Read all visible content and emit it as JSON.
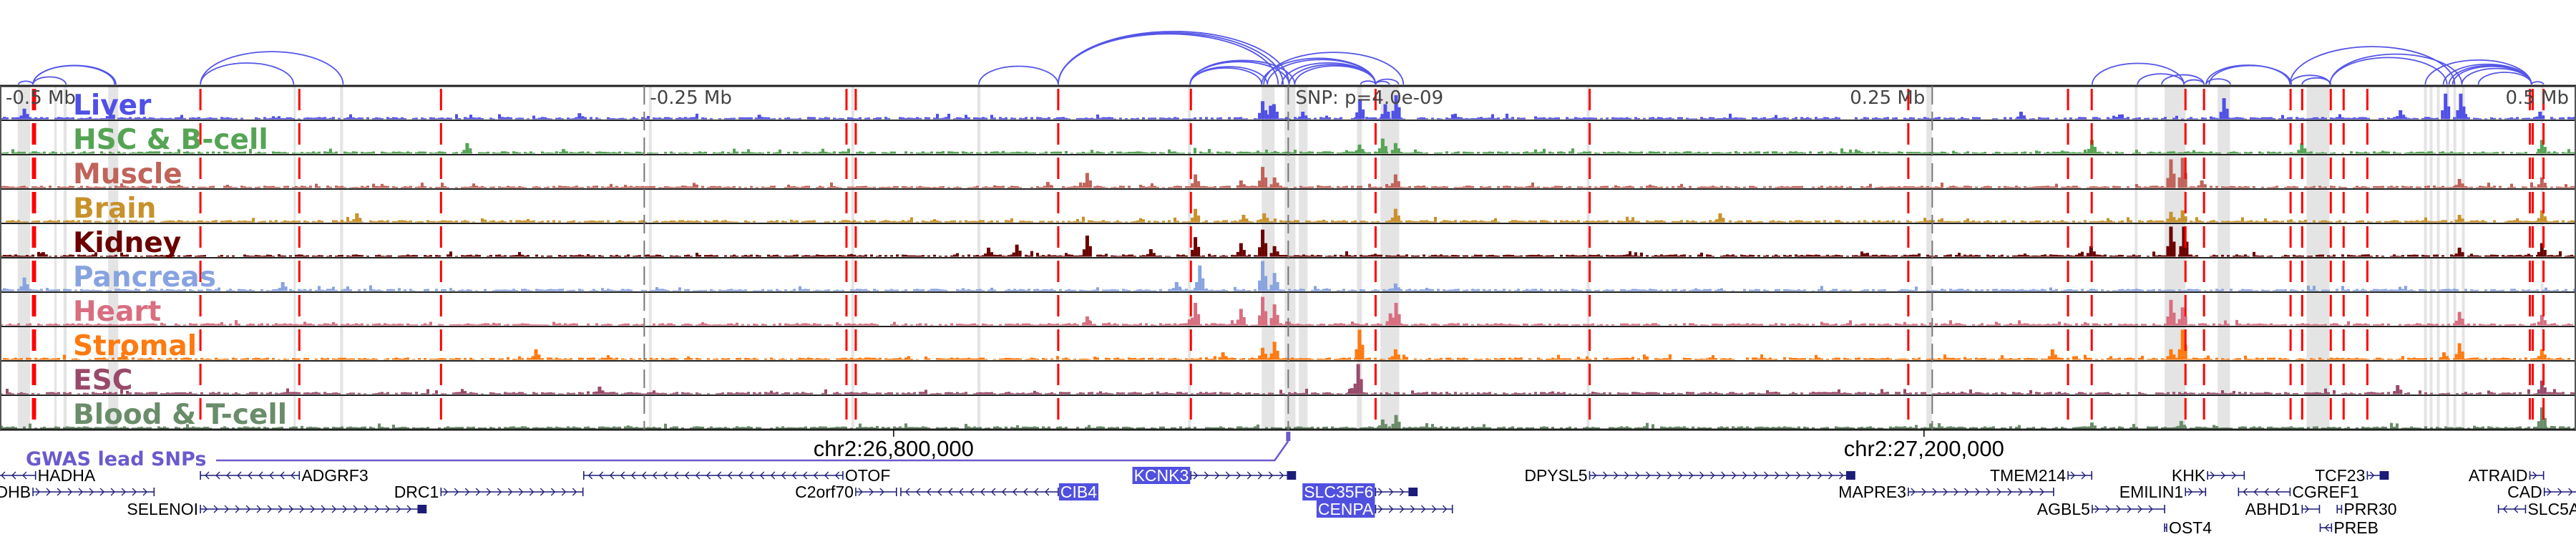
{
  "chart_data": {
    "type": "bar",
    "chromosome": "chr2",
    "x_range_kb": [
      26453.1,
      27453.1
    ],
    "snp": {
      "position_kb": 26953.2,
      "label": "SNP: p=4.0e-09"
    },
    "relative_ticks": [
      {
        "label": "-0.5 Mb",
        "position_kb": 26453.1
      },
      {
        "label": "-0.25 Mb",
        "position_kb": 26703.2
      },
      {
        "label": "0.25 Mb",
        "position_kb": 27203.2
      },
      {
        "label": "0.5 Mb",
        "position_kb": 27453.1
      }
    ],
    "coordinate_ticks": [
      {
        "label": "chr2:26,800,000",
        "position_kb": 26800
      },
      {
        "label": "chr2:27,200,000",
        "position_kb": 27200
      }
    ],
    "tracks": [
      {
        "name": "Liver",
        "color": "#5050e6",
        "peaks": [
          [
            26462.7,
            0.35
          ],
          [
            26496.1,
            0.3
          ],
          [
            26678.2,
            0.2
          ],
          [
            26748,
            0.15
          ],
          [
            26943.4,
            0.6
          ],
          [
            26946.5,
            0.45
          ],
          [
            26947.8,
            0.5
          ],
          [
            26959,
            0.25
          ],
          [
            26981.2,
            0.65
          ],
          [
            26991,
            0.5
          ],
          [
            26995.2,
            0.8
          ],
          [
            27237.8,
            0.25
          ],
          [
            27316.6,
            0.7
          ],
          [
            27385.1,
            0.3
          ],
          [
            27402.6,
            0.85
          ],
          [
            27408.5,
            0.85
          ],
          [
            27439.3,
            0.25
          ]
        ]
      },
      {
        "name": "HSC & B-cell",
        "color": "#55a455",
        "peaks": [
          [
            26634.6,
            0.35
          ],
          [
            26672,
            0.15
          ],
          [
            26981,
            0.3
          ],
          [
            26990,
            0.5
          ],
          [
            26995,
            0.35
          ],
          [
            27265.3,
            0.45
          ],
          [
            27346.8,
            0.35
          ],
          [
            27440,
            0.45
          ]
        ]
      },
      {
        "name": "Muscle",
        "color": "#c0635a",
        "peaks": [
          [
            26860,
            0.2
          ],
          [
            26875.3,
            0.5
          ],
          [
            26917.3,
            0.45
          ],
          [
            26935,
            0.25
          ],
          [
            26943.4,
            0.7
          ],
          [
            26948,
            0.35
          ],
          [
            26995,
            0.45
          ],
          [
            27296,
            0.95
          ],
          [
            27300.5,
            1.0
          ],
          [
            27308,
            0.25
          ],
          [
            27408,
            0.3
          ],
          [
            27440,
            0.35
          ]
        ]
      },
      {
        "name": "Brain",
        "color": "#c8922a",
        "peaks": [
          [
            26591.8,
            0.3
          ],
          [
            26917.3,
            0.45
          ],
          [
            26936,
            0.25
          ],
          [
            26944,
            0.3
          ],
          [
            26995,
            0.45
          ],
          [
            27121,
            0.3
          ],
          [
            27296,
            0.35
          ],
          [
            27300.5,
            0.4
          ],
          [
            27408,
            0.25
          ],
          [
            27440,
            0.4
          ]
        ]
      },
      {
        "name": "Kidney",
        "color": "#6b0000",
        "peaks": [
          [
            26470,
            0.15
          ],
          [
            26837,
            0.3
          ],
          [
            26848,
            0.4
          ],
          [
            26875.3,
            0.7
          ],
          [
            26900,
            0.25
          ],
          [
            26917.3,
            0.65
          ],
          [
            26935,
            0.45
          ],
          [
            26943.4,
            0.9
          ],
          [
            26948,
            0.35
          ],
          [
            27265,
            0.35
          ],
          [
            27296,
            1.0
          ],
          [
            27301,
            1.0
          ],
          [
            27408,
            0.3
          ],
          [
            27440,
            0.45
          ]
        ]
      },
      {
        "name": "Pancreas",
        "color": "#88a3e0",
        "peaks": [
          [
            26462.7,
            0.45
          ],
          [
            26563,
            0.3
          ],
          [
            26910,
            0.3
          ],
          [
            26919,
            0.85
          ],
          [
            26943.4,
            1.0
          ],
          [
            26948,
            0.6
          ],
          [
            26995,
            0.25
          ]
        ]
      },
      {
        "name": "Heart",
        "color": "#d86e80",
        "peaks": [
          [
            26875.3,
            0.3
          ],
          [
            26915,
            0.2
          ],
          [
            26917.3,
            0.75
          ],
          [
            26935,
            0.55
          ],
          [
            26943.4,
            0.95
          ],
          [
            26948,
            0.7
          ],
          [
            26993,
            0.4
          ],
          [
            26995.2,
            0.75
          ],
          [
            27296,
            0.85
          ],
          [
            27300.5,
            0.6
          ],
          [
            27408,
            0.45
          ],
          [
            27440,
            0.35
          ]
        ]
      },
      {
        "name": "Stromal",
        "color": "#ff7a10",
        "peaks": [
          [
            26501,
            0.25
          ],
          [
            26661.3,
            0.35
          ],
          [
            26928,
            0.25
          ],
          [
            26943.4,
            0.4
          ],
          [
            26948,
            0.6
          ],
          [
            26981,
            1.0
          ],
          [
            26995,
            0.35
          ],
          [
            27250,
            0.35
          ],
          [
            27296,
            0.35
          ],
          [
            27300.5,
            1.0
          ],
          [
            27402,
            0.25
          ],
          [
            27408,
            0.55
          ],
          [
            27440,
            0.35
          ]
        ]
      },
      {
        "name": "ESC",
        "color": "#994a6a",
        "peaks": [
          [
            26686,
            0.25
          ],
          [
            26978,
            0.2
          ],
          [
            26980.5,
            1.0
          ],
          [
            27384,
            0.3
          ],
          [
            27440,
            0.45
          ]
        ]
      },
      {
        "name": "Blood & T-cell",
        "color": "#6a8c6a",
        "peaks": [
          [
            26990,
            0.3
          ],
          [
            26995.2,
            0.45
          ],
          [
            27265.3,
            0.2
          ],
          [
            27300,
            0.25
          ],
          [
            27440,
            0.7
          ]
        ]
      }
    ],
    "candidate_lines_kb": [
      26465.9,
      26466.7,
      26530.9,
      26569.3,
      26624.3,
      26781.7,
      26785.3,
      26863.9,
      26915.4,
      26987.1,
      27070.2,
      27193.9,
      27255.9,
      27265.1,
      27301.5,
      27308.7,
      27342.3,
      27346.8,
      27357.9,
      27362.9,
      27372.1,
      27435.2,
      27436.3,
      27440.5
    ],
    "highlighted_regions_kb": [
      [
        26460.0,
        26464.8
      ],
      [
        26474.2,
        26475.1
      ],
      [
        26477.8,
        26479.0
      ],
      [
        26495.1,
        26499.0
      ],
      [
        26567.1,
        26567.9
      ],
      [
        26585.1,
        26586.3
      ],
      [
        26705.0,
        26706.1
      ],
      [
        26783.6,
        26784.7
      ],
      [
        26832.5,
        26833.7
      ],
      [
        26914.3,
        26915.4
      ],
      [
        26942.9,
        26947.9
      ],
      [
        26951.8,
        26956.0
      ],
      [
        26957.3,
        26960.7
      ],
      [
        26979.9,
        26981.8
      ],
      [
        26989.0,
        26996.3
      ],
      [
        27069.1,
        27070.2
      ],
      [
        27200.9,
        27203.1
      ],
      [
        27281.8,
        27282.9
      ],
      [
        27293.4,
        27301.5
      ],
      [
        27314.0,
        27318.8
      ],
      [
        27348.5,
        27357.4
      ],
      [
        27394.1,
        27395.2
      ],
      [
        27396.3,
        27397.4
      ],
      [
        27399.1,
        27400.2
      ],
      [
        27402.7,
        27403.8
      ],
      [
        27405.5,
        27406.6
      ],
      [
        27408.8,
        27409.9
      ],
      [
        27439.4,
        27440.5
      ]
    ],
    "loops_kb": [
      [
        26460.3,
        26465.9
      ],
      [
        26465.9,
        26478.7
      ],
      [
        26465.9,
        26497.6
      ],
      [
        26465.9,
        26498.1
      ],
      [
        26530.9,
        26567.1
      ],
      [
        26530.9,
        26586.3
      ],
      [
        26833.1,
        26863.9
      ],
      [
        26863.9,
        26949.3
      ],
      [
        26863.9,
        26951.2
      ],
      [
        26863.9,
        26953.5
      ],
      [
        26915.1,
        26942.9
      ],
      [
        26915.1,
        26945.1
      ],
      [
        26915.1,
        26953.5
      ],
      [
        26915.1,
        26955.7
      ],
      [
        26942.9,
        26987.1
      ],
      [
        26945.1,
        26987.1
      ],
      [
        26950.7,
        26987.1
      ],
      [
        26953.5,
        26987.1
      ],
      [
        26955.7,
        26987.1
      ],
      [
        26943.7,
        26997.9
      ],
      [
        26981.3,
        26987.1
      ],
      [
        26987.1,
        26996.0
      ],
      [
        26987.1,
        26992.4
      ],
      [
        27265.3,
        27300.9
      ],
      [
        27282.9,
        27300.9
      ],
      [
        27292.3,
        27308.7
      ],
      [
        27300.9,
        27308.7
      ],
      [
        27309.5,
        27318.9
      ],
      [
        27309.5,
        27342.1
      ],
      [
        27310.7,
        27342.6
      ],
      [
        27342.1,
        27357.6
      ],
      [
        27346.8,
        27357.9
      ],
      [
        27342.1,
        27406.0
      ],
      [
        27357.6,
        27403.0
      ],
      [
        27357.6,
        27408.8
      ],
      [
        27394.6,
        27435.8
      ],
      [
        27401.6,
        27435.8
      ],
      [
        27403.8,
        27435.8
      ],
      [
        27405.2,
        27435.8
      ],
      [
        27408.8,
        27435.8
      ],
      [
        27415.2,
        27435.8
      ],
      [
        27435.8,
        27440.5
      ]
    ]
  },
  "gwas_track": {
    "label": "GWAS lead SNPs",
    "snp_position_kb": 26953.2
  },
  "genes": [
    {
      "name": "HADHA",
      "start_kb": 26440.0,
      "end_kb": 26466.9,
      "strand": "-",
      "row": 0,
      "highlight": false,
      "coding_end_block": false
    },
    {
      "name": "ADGRF3",
      "start_kb": 26530.9,
      "end_kb": 26569.3,
      "strand": "-",
      "row": 0,
      "highlight": false,
      "coding_end_block": false
    },
    {
      "name": "OTOF",
      "start_kb": 26679.7,
      "end_kb": 26780.3,
      "strand": "-",
      "row": 0,
      "highlight": false,
      "coding_end_block": false
    },
    {
      "name": "KCNK3",
      "start_kb": 26915.4,
      "end_kb": 26956.0,
      "strand": "+",
      "row": 0,
      "highlight": true,
      "coding_end_block": true
    },
    {
      "name": "DPYSL5",
      "start_kb": 27070.2,
      "end_kb": 27173.1,
      "strand": "+",
      "row": 0,
      "highlight": false,
      "coding_end_block": true
    },
    {
      "name": "TMEM214",
      "start_kb": 27255.9,
      "end_kb": 27265.1,
      "strand": "+",
      "row": 0,
      "highlight": false,
      "coding_end_block": false
    },
    {
      "name": "KHK",
      "start_kb": 27310.1,
      "end_kb": 27324.3,
      "strand": "+",
      "row": 0,
      "highlight": false,
      "coding_end_block": false
    },
    {
      "name": "TCF23",
      "start_kb": 27372.1,
      "end_kb": 27380.2,
      "strand": "+",
      "row": 0,
      "highlight": false,
      "coding_end_block": true
    },
    {
      "name": "ATRAID",
      "start_kb": 27435.2,
      "end_kb": 27440.5,
      "strand": "+",
      "row": 0,
      "highlight": false,
      "coding_end_block": false
    },
    {
      "name": "DHB",
      "start_kb": 26465.9,
      "end_kb": 26512.9,
      "strand": "+",
      "row": 1,
      "highlight": false,
      "coding_end_block": false
    },
    {
      "name": "DRC1",
      "start_kb": 26624.3,
      "end_kb": 26679.4,
      "strand": "+",
      "row": 1,
      "highlight": false,
      "coding_end_block": false
    },
    {
      "name": "C2orf70",
      "start_kb": 26785.3,
      "end_kb": 26801.1,
      "strand": "+",
      "row": 1,
      "highlight": false,
      "coding_end_block": false
    },
    {
      "name": "CIB4",
      "start_kb": 26802.8,
      "end_kb": 26863.9,
      "strand": "-",
      "row": 1,
      "highlight": true,
      "coding_end_block": false
    },
    {
      "name": "SLC35F6",
      "start_kb": 26987.1,
      "end_kb": 27003.2,
      "strand": "+",
      "row": 1,
      "highlight": true,
      "coding_end_block": true
    },
    {
      "name": "MAPRE3",
      "start_kb": 27193.9,
      "end_kb": 27250.3,
      "strand": "+",
      "row": 1,
      "highlight": false,
      "coding_end_block": false
    },
    {
      "name": "EMILIN1",
      "start_kb": 27301.5,
      "end_kb": 27309.3,
      "strand": "+",
      "row": 1,
      "highlight": false,
      "coding_end_block": false
    },
    {
      "name": "CGREF1",
      "start_kb": 27322.1,
      "end_kb": 27342.1,
      "strand": "-",
      "row": 1,
      "highlight": false,
      "coding_end_block": false
    },
    {
      "name": "CAD",
      "start_kb": 27440.8,
      "end_kb": 27455.0,
      "strand": "+",
      "row": 1,
      "highlight": false,
      "coding_end_block": false
    },
    {
      "name": "SELENOI",
      "start_kb": 26530.9,
      "end_kb": 26618.5,
      "strand": "+",
      "row": 2,
      "highlight": false,
      "coding_end_block": true
    },
    {
      "name": "CENPA",
      "start_kb": 26987.1,
      "end_kb": 27016.9,
      "strand": "+",
      "row": 2,
      "highlight": true,
      "coding_end_block": false
    },
    {
      "name": "AGBL5",
      "start_kb": 27265.3,
      "end_kb": 27293.4,
      "strand": "+",
      "row": 2,
      "highlight": false,
      "coding_end_block": false
    },
    {
      "name": "ABHD1",
      "start_kb": 27346.8,
      "end_kb": 27353.5,
      "strand": "+",
      "row": 2,
      "highlight": false,
      "coding_end_block": false
    },
    {
      "name": "PRR30",
      "start_kb": 27360.4,
      "end_kb": 27362.1,
      "strand": "-",
      "row": 2,
      "highlight": false,
      "coding_end_block": false
    },
    {
      "name": "SLC5A",
      "start_kb": 27423.0,
      "end_kb": 27433.5,
      "strand": "-",
      "row": 2,
      "highlight": false,
      "coding_end_block": false
    },
    {
      "name": "OST4",
      "start_kb": 27293.4,
      "end_kb": 27294.2,
      "strand": "-",
      "row": 3,
      "highlight": false,
      "coding_end_block": false
    },
    {
      "name": "PREB",
      "start_kb": 27353.8,
      "end_kb": 27358.2,
      "strand": "-",
      "row": 3,
      "highlight": false,
      "coding_end_block": false
    }
  ],
  "colors": {
    "loop": "#5555e8",
    "candidate_line": "#ff0000",
    "highlight_region": "#e4e4e4",
    "gene": "#1c1c78",
    "gene_highlight_bg": "#5050e0",
    "gwas": "#6a5acd"
  }
}
